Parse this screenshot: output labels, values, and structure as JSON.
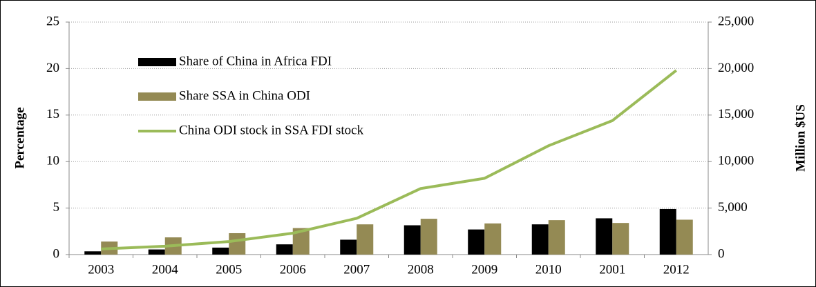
{
  "chart_data": {
    "type": "bar",
    "categories": [
      "2003",
      "2004",
      "2005",
      "2006",
      "2007",
      "2008",
      "2009",
      "2010",
      "2001",
      "2012"
    ],
    "series": [
      {
        "name": "Share of China in Africa FDI",
        "color": "#000000",
        "values": [
          0.35,
          0.55,
          0.75,
          1.1,
          1.6,
          3.15,
          2.7,
          3.25,
          3.9,
          4.9
        ]
      },
      {
        "name": "Share SSA in China ODI",
        "color": "#948a54",
        "values": [
          1.4,
          1.85,
          2.3,
          2.85,
          3.25,
          3.85,
          3.35,
          3.7,
          3.4,
          3.75
        ]
      },
      {
        "name": "China ODI stock in SSA FDI stock",
        "color": "#9bbb59",
        "type": "line",
        "axis": "y2",
        "values": [
          600,
          900,
          1400,
          2300,
          3900,
          7100,
          8200,
          11700,
          14400,
          19800
        ]
      }
    ],
    "ylabel": "Percentage",
    "y2label": "Million $US",
    "ylim": [
      0,
      25
    ],
    "yticks": [
      0,
      5,
      10,
      15,
      20,
      25
    ],
    "y2lim": [
      0,
      25000
    ],
    "y2ticks": [
      0,
      {
        "value": 5000,
        "label": "5,000"
      },
      {
        "value": 10000,
        "label": "10,000"
      },
      {
        "value": 15000,
        "label": "15,000"
      },
      {
        "value": 20000,
        "label": "20,000"
      },
      {
        "value": 25000,
        "label": "25,000"
      }
    ],
    "grid": true,
    "legend": "upper left"
  }
}
